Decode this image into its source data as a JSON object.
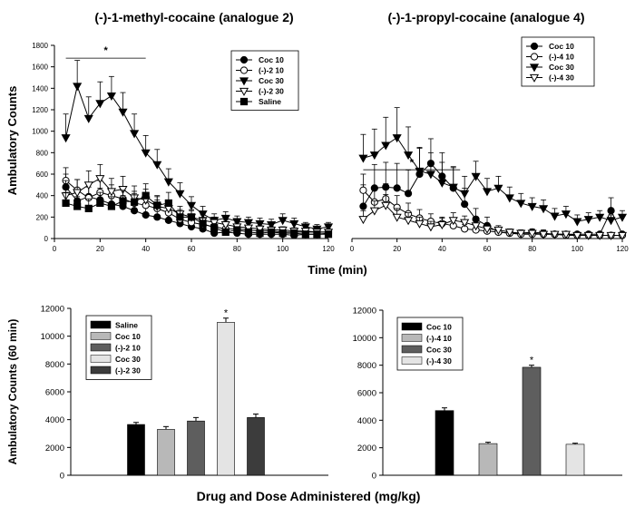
{
  "labels": {
    "y_top": "Ambulatory Counts",
    "x_top": "Time (min)",
    "y_bottom": "Ambulatory Counts (60 min)",
    "x_bottom": "Drug and Dose Administered (mg/kg)",
    "star": "*"
  },
  "chart_data": [
    {
      "type": "line",
      "title": "(-)-1-methyl-cocaine (analogue 2)",
      "xlim": [
        0,
        120
      ],
      "ylim": [
        0,
        1800
      ],
      "xticks": [
        0,
        20,
        40,
        60,
        80,
        100,
        120
      ],
      "yticks": [
        0,
        200,
        400,
        600,
        800,
        1000,
        1200,
        1400,
        1600,
        1800
      ],
      "legend_position": "top-right",
      "significance": {
        "x_range": [
          5,
          40
        ],
        "y": 1680,
        "label": "*"
      },
      "x": [
        5,
        10,
        15,
        20,
        25,
        30,
        35,
        40,
        45,
        50,
        55,
        60,
        65,
        70,
        75,
        80,
        85,
        90,
        95,
        100,
        105,
        110,
        115,
        120
      ],
      "series": [
        {
          "name": "Coc 10",
          "marker": "circle-filled",
          "values": [
            480,
            350,
            390,
            360,
            320,
            300,
            260,
            220,
            200,
            170,
            140,
            110,
            90,
            50,
            60,
            50,
            40,
            40,
            40,
            40,
            30,
            40,
            40,
            50
          ],
          "errors": [
            120,
            100,
            120,
            110,
            100,
            100,
            100,
            90,
            80,
            70,
            60,
            50,
            40,
            30,
            30,
            30,
            20,
            20,
            20,
            20,
            20,
            20,
            20,
            20
          ]
        },
        {
          "name": "(-)-2 10",
          "marker": "circle-open",
          "values": [
            540,
            450,
            380,
            430,
            400,
            370,
            330,
            310,
            280,
            240,
            180,
            150,
            130,
            110,
            90,
            90,
            80,
            70,
            70,
            60,
            60,
            60,
            60,
            60
          ],
          "errors": [
            120,
            100,
            100,
            110,
            100,
            100,
            90,
            90,
            80,
            70,
            60,
            50,
            50,
            40,
            40,
            40,
            30,
            30,
            30,
            30,
            30,
            30,
            30,
            30
          ]
        },
        {
          "name": "Coc 30",
          "marker": "triangle-down-filled",
          "values": [
            940,
            1420,
            1120,
            1260,
            1330,
            1180,
            980,
            800,
            690,
            530,
            420,
            310,
            230,
            170,
            190,
            160,
            150,
            140,
            130,
            170,
            140,
            110,
            90,
            110
          ],
          "errors": [
            220,
            240,
            200,
            200,
            180,
            180,
            180,
            160,
            140,
            120,
            100,
            80,
            70,
            60,
            60,
            50,
            50,
            50,
            50,
            60,
            50,
            40,
            40,
            40
          ]
        },
        {
          "name": "(-)-2 30",
          "marker": "triangle-down-open",
          "values": [
            400,
            430,
            500,
            560,
            440,
            460,
            380,
            360,
            300,
            280,
            230,
            200,
            170,
            150,
            130,
            110,
            100,
            90,
            80,
            80,
            70,
            70,
            60,
            60
          ],
          "errors": [
            140,
            120,
            130,
            130,
            120,
            120,
            110,
            100,
            90,
            80,
            70,
            60,
            50,
            50,
            40,
            40,
            40,
            30,
            30,
            30,
            30,
            30,
            30,
            30
          ]
        },
        {
          "name": "Saline",
          "marker": "square-filled",
          "values": [
            330,
            300,
            280,
            330,
            300,
            350,
            340,
            400,
            310,
            330,
            200,
            200,
            140,
            100,
            60,
            80,
            60,
            50,
            60,
            50,
            50,
            40,
            40,
            40
          ],
          "errors": [
            100,
            90,
            90,
            100,
            90,
            100,
            100,
            110,
            90,
            100,
            70,
            70,
            50,
            40,
            30,
            30,
            30,
            20,
            20,
            20,
            20,
            20,
            20,
            20
          ]
        }
      ]
    },
    {
      "type": "line",
      "title": "(-)-1-propyl-cocaine (analogue 4)",
      "xlim": [
        0,
        120
      ],
      "ylim": [
        0,
        1800
      ],
      "xticks": [
        0,
        20,
        40,
        60,
        80,
        100,
        120
      ],
      "yticks": [
        0,
        200,
        400,
        600,
        800,
        1000,
        1200,
        1400,
        1600,
        1800
      ],
      "legend_position": "top-right",
      "significance": {
        "x_range": [
          5,
          48
        ],
        "y": 640,
        "label": "*"
      },
      "x": [
        5,
        10,
        15,
        20,
        25,
        30,
        35,
        40,
        45,
        50,
        55,
        60,
        65,
        70,
        75,
        80,
        85,
        90,
        95,
        100,
        105,
        110,
        115,
        120
      ],
      "series": [
        {
          "name": "Coc 10",
          "marker": "circle-filled",
          "values": [
            300,
            470,
            480,
            470,
            420,
            600,
            700,
            580,
            470,
            320,
            180,
            120,
            60,
            50,
            50,
            60,
            50,
            40,
            40,
            40,
            40,
            40,
            260,
            40
          ],
          "errors": [
            200,
            220,
            230,
            230,
            220,
            240,
            230,
            220,
            200,
            150,
            100,
            80,
            40,
            30,
            30,
            30,
            30,
            20,
            20,
            20,
            20,
            20,
            120,
            20
          ]
        },
        {
          "name": "(-)-4 10",
          "marker": "circle-open",
          "values": [
            450,
            340,
            370,
            290,
            230,
            190,
            160,
            140,
            120,
            90,
            80,
            70,
            60,
            50,
            40,
            40,
            40,
            40,
            30,
            30,
            30,
            30,
            30,
            30
          ],
          "errors": [
            150,
            130,
            140,
            110,
            100,
            80,
            70,
            60,
            50,
            40,
            40,
            30,
            30,
            20,
            20,
            20,
            20,
            20,
            20,
            20,
            20,
            20,
            20,
            20
          ]
        },
        {
          "name": "Coc 30",
          "marker": "triangle-down-filled",
          "values": [
            750,
            780,
            870,
            940,
            780,
            630,
            600,
            520,
            480,
            420,
            580,
            440,
            470,
            380,
            330,
            300,
            280,
            210,
            230,
            160,
            180,
            200,
            170,
            200
          ],
          "errors": [
            220,
            240,
            260,
            280,
            260,
            220,
            200,
            190,
            180,
            160,
            140,
            120,
            110,
            100,
            90,
            80,
            80,
            70,
            70,
            60,
            60,
            60,
            50,
            60
          ]
        },
        {
          "name": "(-)-4 30",
          "marker": "triangle-down-open",
          "values": [
            180,
            260,
            310,
            200,
            170,
            140,
            110,
            130,
            170,
            150,
            120,
            90,
            80,
            60,
            50,
            50,
            40,
            40,
            40,
            30,
            30,
            30,
            30,
            30
          ],
          "errors": [
            80,
            90,
            100,
            80,
            70,
            60,
            50,
            60,
            70,
            60,
            50,
            40,
            40,
            30,
            30,
            30,
            20,
            20,
            20,
            20,
            20,
            20,
            20,
            20
          ]
        }
      ]
    },
    {
      "type": "bar",
      "ylim": [
        0,
        12000
      ],
      "yticks": [
        0,
        2000,
        4000,
        6000,
        8000,
        10000,
        12000
      ],
      "legend_position": "top-left",
      "categories": [
        "Saline",
        "Coc 10",
        "(-)-2 10",
        "Coc 30",
        "(-)-2 30"
      ],
      "values": [
        3650,
        3300,
        3900,
        11000,
        4150
      ],
      "errors": [
        150,
        200,
        250,
        300,
        250
      ],
      "significant": [
        false,
        false,
        false,
        true,
        false
      ],
      "colors": [
        "#000000",
        "#b8b8b8",
        "#5e5e5e",
        "#e4e4e4",
        "#3c3c3c"
      ]
    },
    {
      "type": "bar",
      "ylim": [
        0,
        12000
      ],
      "yticks": [
        0,
        2000,
        4000,
        6000,
        8000,
        10000,
        12000
      ],
      "legend_position": "top-left",
      "categories": [
        "Coc 10",
        "(-)-4 10",
        "Coc 30",
        "(-)-4 30"
      ],
      "values": [
        4700,
        2300,
        7850,
        2250
      ],
      "errors": [
        200,
        100,
        150,
        80
      ],
      "significant": [
        false,
        false,
        true,
        false
      ],
      "colors": [
        "#000000",
        "#b8b8b8",
        "#5e5e5e",
        "#e4e4e4"
      ]
    }
  ]
}
